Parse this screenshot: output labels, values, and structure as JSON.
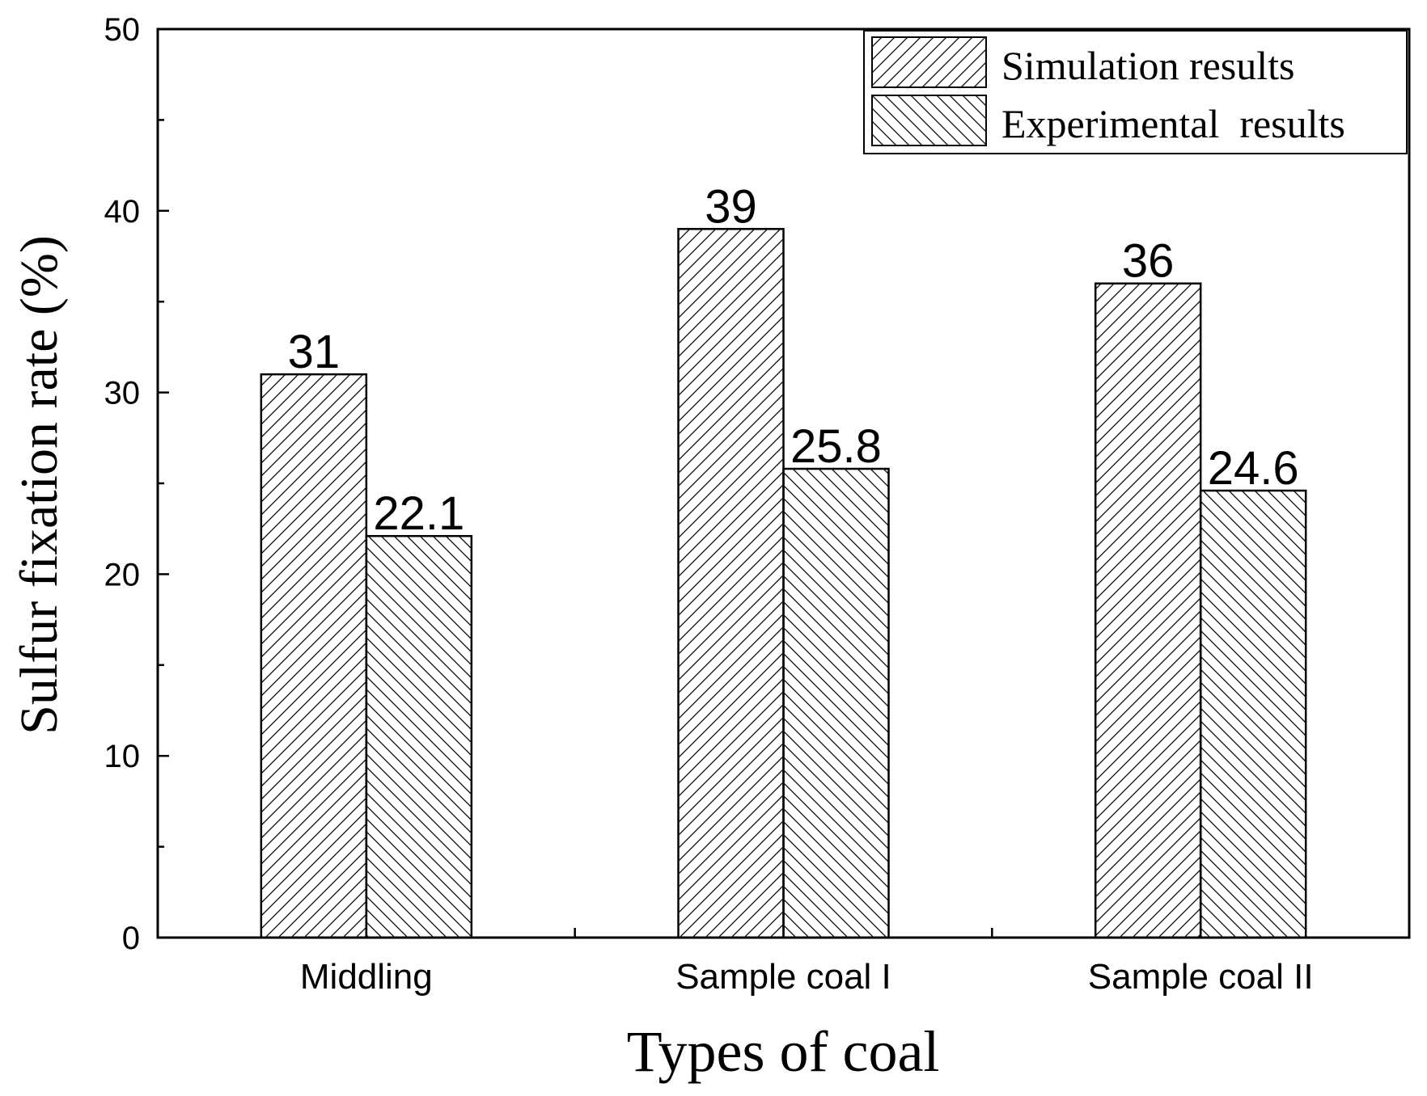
{
  "chart_data": {
    "type": "bar",
    "title": "",
    "categories": [
      "Middling",
      "Sample coal I",
      "Sample coal II"
    ],
    "series": [
      {
        "name": "Simulation results",
        "values": [
          31,
          39,
          36
        ],
        "labels": [
          "31",
          "39",
          "36"
        ],
        "pattern": "hatch-forward"
      },
      {
        "name": "Experimental  results",
        "values": [
          22.1,
          25.8,
          24.6
        ],
        "labels": [
          "22.1",
          "25.8",
          "24.6"
        ],
        "pattern": "hatch-back"
      }
    ],
    "xlabel": "Types of coal",
    "ylabel": "Sulfur fixation rate (%)",
    "ylim": [
      0,
      50
    ],
    "yticks": [
      0,
      10,
      20,
      30,
      40,
      50
    ],
    "ytick_labels": [
      "0",
      "10",
      "20",
      "30",
      "40",
      "50"
    ],
    "legend_position": "top-right",
    "grid": false
  }
}
